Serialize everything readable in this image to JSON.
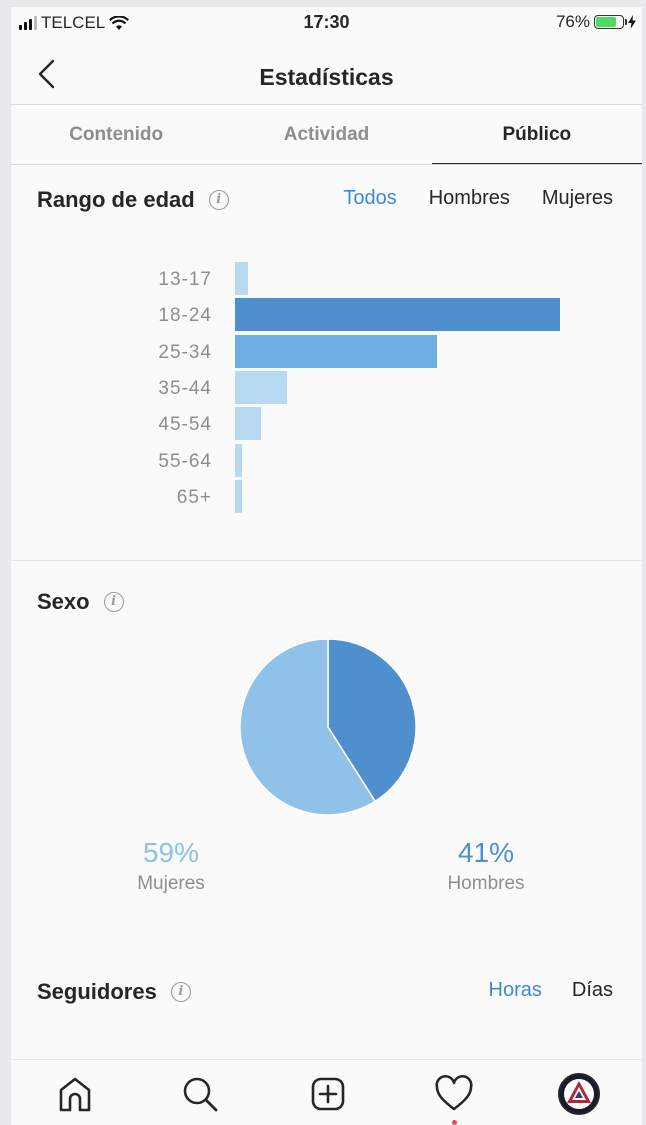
{
  "status": {
    "carrier": "TELCEL",
    "time": "17:30",
    "battery": "76%",
    "battery_level": 0.76
  },
  "header": {
    "title": "Estadísticas"
  },
  "tabs": [
    {
      "label": "Contenido",
      "active": false
    },
    {
      "label": "Actividad",
      "active": false
    },
    {
      "label": "Público",
      "active": true
    }
  ],
  "age_section": {
    "title": "Rango de edad",
    "filters": [
      "Todos",
      "Hombres",
      "Mujeres"
    ],
    "selected_filter": "Todos"
  },
  "gender_section": {
    "title": "Sexo"
  },
  "followers_section": {
    "title": "Seguidores",
    "filters": [
      "Horas",
      "Días"
    ],
    "selected_filter": "Horas"
  },
  "colors": {
    "accent": "#3d8ad6",
    "bar_dark": "#4f8fce",
    "bar_mid": "#6eaee3",
    "bar_light": "#b7d9f2",
    "pie_dark": "#4f8fce",
    "pie_light": "#8fc1e9"
  },
  "icons": [
    "back-chevron-icon",
    "info-icon",
    "home-icon",
    "search-icon",
    "add-post-icon",
    "heart-icon",
    "profile-avatar-icon"
  ],
  "chart_data": [
    {
      "type": "bar",
      "orientation": "horizontal",
      "categories": [
        "13-17",
        "18-24",
        "25-34",
        "35-44",
        "45-54",
        "55-64",
        "65+"
      ],
      "values": [
        4,
        100,
        62,
        16,
        8,
        2,
        2
      ]
    },
    {
      "type": "pie",
      "labels": [
        "Mujeres",
        "Hombres"
      ],
      "values": [
        59,
        41
      ],
      "value_labels": [
        "59%",
        "41%"
      ]
    }
  ]
}
